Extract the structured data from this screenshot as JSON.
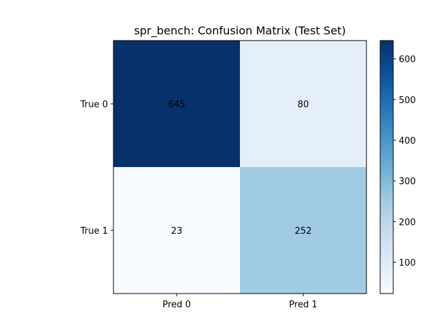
{
  "chart_data": {
    "type": "heatmap",
    "title": "spr_bench: Confusion Matrix (Test Set)",
    "x_categories": [
      "Pred 0",
      "Pred 1"
    ],
    "y_categories": [
      "True 0",
      "True 1"
    ],
    "matrix": [
      [
        645,
        80
      ],
      [
        23,
        252
      ]
    ],
    "colormap": "Blues",
    "colorbar": {
      "min": 23,
      "max": 645,
      "ticks": [
        100,
        200,
        300,
        400,
        500,
        600
      ]
    },
    "colors": {
      "low": "#f7fbff",
      "high": "#08306b"
    },
    "grid": false
  }
}
